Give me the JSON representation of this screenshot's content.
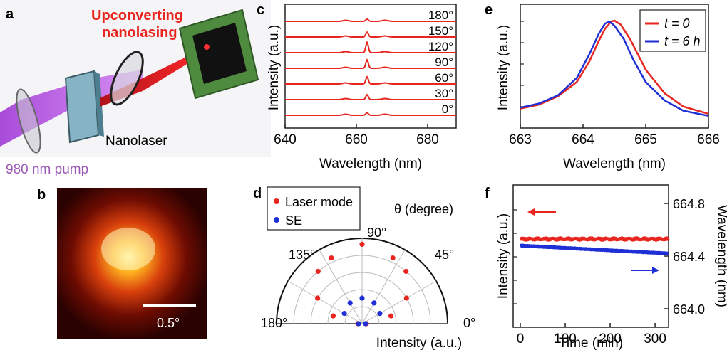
{
  "colors": {
    "red": "#e8261f",
    "blue": "#1f2fd6",
    "axis": "#222222",
    "setup_pink": "#d52a7a",
    "setup_purple": "#9b59b6",
    "green_chip": "#4f8b3e"
  },
  "panels": {
    "a": {
      "letter": "a",
      "title_line1": "Upconverting",
      "title_line2": "nanolasing",
      "nanolaser_label": "Nanolaser",
      "pump_label": "980 nm pump"
    },
    "b": {
      "letter": "b",
      "scalebar_label": "0.5°"
    },
    "d": {
      "letter": "d",
      "theta_label": "θ (degree)",
      "angle_labels": [
        "180°",
        "135°",
        "90°",
        "45°",
        "0°"
      ]
    },
    "e": {
      "letter": "e"
    },
    "f": {
      "letter": "f"
    }
  },
  "chart_data": [
    {
      "panel": "c",
      "type": "line",
      "xlabel": "Wavelength (nm)",
      "ylabel": "Intensity (a.u.)",
      "xlim": [
        640,
        688
      ],
      "x_ticks": [
        640,
        660,
        680
      ],
      "series_color": "#e8261f",
      "offset_labels": [
        "180°",
        "150°",
        "120°",
        "90°",
        "60°",
        "30°",
        "0°"
      ],
      "peak_wavelength": 663,
      "peak_heights": [
        0.35,
        0.75,
        1.6,
        1.3,
        1.1,
        0.75,
        0.4
      ]
    },
    {
      "panel": "d",
      "type": "scatter",
      "xlabel": "Intensity (a.u.)",
      "theta_label": "θ (degree)",
      "theta_ticks": [
        0,
        45,
        90,
        135,
        180
      ],
      "legend": {
        "position": "top-left",
        "entries": [
          {
            "label": "Laser mode",
            "color": "#e8261f"
          },
          {
            "label": "SE",
            "color": "#1f2fd6"
          }
        ]
      },
      "series": [
        {
          "name": "Laser mode",
          "color": "#e8261f",
          "points": [
            {
              "theta": 0,
              "r": 0.05
            },
            {
              "theta": 15,
              "r": 0.35
            },
            {
              "theta": 30,
              "r": 0.6
            },
            {
              "theta": 50,
              "r": 0.8
            },
            {
              "theta": 65,
              "r": 0.85
            },
            {
              "theta": 90,
              "r": 0.93
            },
            {
              "theta": 115,
              "r": 0.85
            },
            {
              "theta": 130,
              "r": 0.8
            },
            {
              "theta": 150,
              "r": 0.6
            },
            {
              "theta": 165,
              "r": 0.35
            },
            {
              "theta": 180,
              "r": 0.05
            }
          ]
        },
        {
          "name": "SE",
          "color": "#1f2fd6",
          "points": [
            {
              "theta": 0,
              "r": 0.04
            },
            {
              "theta": 30,
              "r": 0.24
            },
            {
              "theta": 60,
              "r": 0.28
            },
            {
              "theta": 90,
              "r": 0.3
            },
            {
              "theta": 120,
              "r": 0.28
            },
            {
              "theta": 150,
              "r": 0.24
            },
            {
              "theta": 180,
              "r": 0.04
            }
          ]
        }
      ]
    },
    {
      "panel": "e",
      "type": "line",
      "xlabel": "Wavelength (nm)",
      "ylabel": "Intensity (a.u.)",
      "xlim": [
        663,
        666
      ],
      "x_ticks": [
        663,
        664,
        665,
        666
      ],
      "legend": {
        "position": "top-right"
      },
      "series": [
        {
          "name": "t = 0",
          "color": "#e8261f",
          "x": [
            663.0,
            663.3,
            663.6,
            663.9,
            664.1,
            664.25,
            664.35,
            664.45,
            664.5,
            664.6,
            664.75,
            665.0,
            665.3,
            665.6,
            666.0
          ],
          "y": [
            0.12,
            0.16,
            0.24,
            0.38,
            0.58,
            0.78,
            0.9,
            0.97,
            0.98,
            0.94,
            0.8,
            0.5,
            0.27,
            0.14,
            0.07
          ]
        },
        {
          "name": "t = 6 h",
          "color": "#1f2fd6",
          "x": [
            663.0,
            663.3,
            663.6,
            663.9,
            664.1,
            664.25,
            664.35,
            664.42,
            664.5,
            664.65,
            664.8,
            665.0,
            665.3,
            665.6,
            666.0
          ],
          "y": [
            0.13,
            0.17,
            0.25,
            0.42,
            0.65,
            0.85,
            0.95,
            0.97,
            0.93,
            0.8,
            0.6,
            0.38,
            0.2,
            0.1,
            0.05
          ]
        }
      ]
    },
    {
      "panel": "f",
      "type": "scatter",
      "xlabel": "Time (min)",
      "ylabel": "Intensity (a.u.)",
      "y2label": "Wavelength (nm)",
      "xlim": [
        0,
        330
      ],
      "x_ticks": [
        0,
        100,
        200,
        300
      ],
      "y2lim": [
        664.0,
        664.8
      ],
      "y2_ticks": [
        "664.8",
        "664.4",
        "664.0"
      ],
      "series": [
        {
          "name": "Intensity",
          "axis": "left",
          "color": "#e8261f",
          "x": [
            0,
            330
          ],
          "y": [
            0.62,
            0.62
          ]
        },
        {
          "name": "Wavelength",
          "axis": "right",
          "color": "#1f2fd6",
          "x": [
            0,
            330
          ],
          "y": [
            664.48,
            664.42
          ]
        }
      ]
    }
  ]
}
